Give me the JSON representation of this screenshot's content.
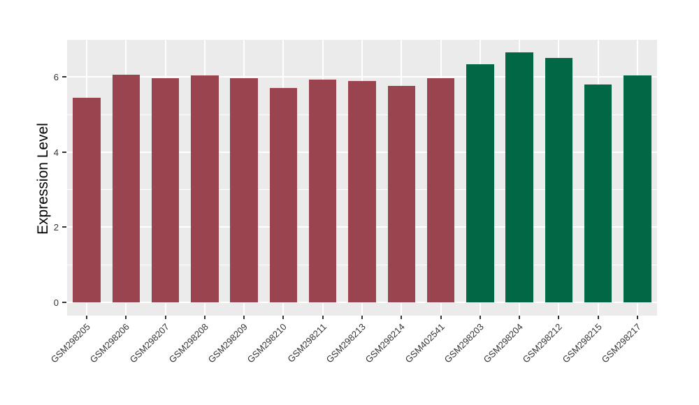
{
  "chart_data": {
    "type": "bar",
    "title": "",
    "xlabel": "",
    "ylabel": "Expression Level",
    "categories": [
      "GSM298205",
      "GSM298206",
      "GSM298207",
      "GSM298208",
      "GSM298209",
      "GSM298210",
      "GSM298211",
      "GSM298213",
      "GSM298214",
      "GSM402541",
      "GSM298203",
      "GSM298204",
      "GSM298212",
      "GSM298215",
      "GSM298217"
    ],
    "values": [
      5.44,
      6.06,
      5.97,
      6.04,
      5.97,
      5.71,
      5.93,
      5.9,
      5.76,
      5.97,
      6.34,
      6.66,
      6.51,
      5.8,
      6.05
    ],
    "bar_colors": [
      "#9A4450",
      "#9A4450",
      "#9A4450",
      "#9A4450",
      "#9A4450",
      "#9A4450",
      "#9A4450",
      "#9A4450",
      "#9A4450",
      "#9A4450",
      "#026745",
      "#026745",
      "#026745",
      "#026745",
      "#026745"
    ],
    "group_colors": {
      "maroon_group": "#9A4450",
      "green_group": "#026745"
    },
    "ylim": [
      0,
      7
    ],
    "ytick_labels": [
      "0",
      "2",
      "4",
      "6"
    ],
    "ytick_values": [
      0,
      2,
      4,
      6
    ],
    "minor_ytick_values": [
      1,
      3,
      5,
      7
    ],
    "x_tick_rotation_deg": 45,
    "grid": true,
    "legend": "none"
  },
  "style": {
    "figure_background": "#FFFFFF",
    "panel_background": "#EBEBEB",
    "grid_color": "#FFFFFF",
    "axis_text_color": "#333333",
    "axis_title_color": "#000000",
    "tick_mark_color": "#333333"
  }
}
